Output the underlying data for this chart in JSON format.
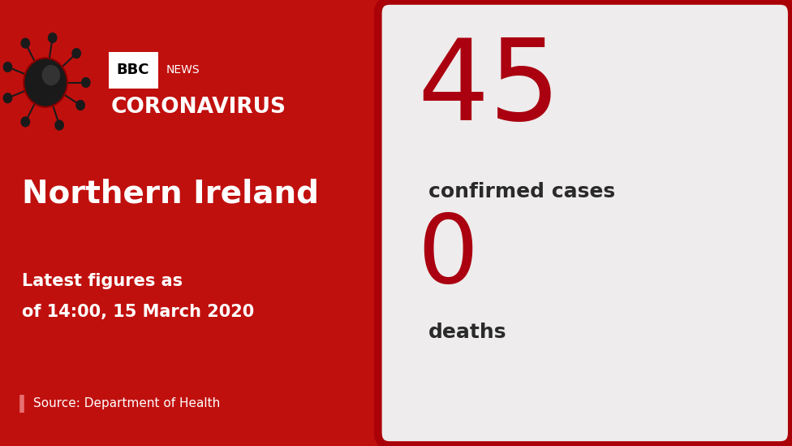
{
  "bg_color_left": "#c0100e",
  "bg_color_right": "#eeecec",
  "border_color": "#aa0008",
  "text_color_white": "#ffffff",
  "text_color_dark": "#2a2a2a",
  "text_color_red": "#aa0010",
  "bbc_news_text": "BBC NEWS",
  "coronavirus_text": "CORONAVIRUS",
  "region_text": "Northern Ireland",
  "latest_line1": "Latest figures as",
  "latest_line2": "of 14:00, 15 March 2020",
  "source_text": "Source: Department of Health",
  "confirmed_number": "45",
  "confirmed_label": "confirmed cases",
  "deaths_number": "0",
  "deaths_label": "deaths",
  "fig_width": 9.76,
  "fig_height": 5.49
}
